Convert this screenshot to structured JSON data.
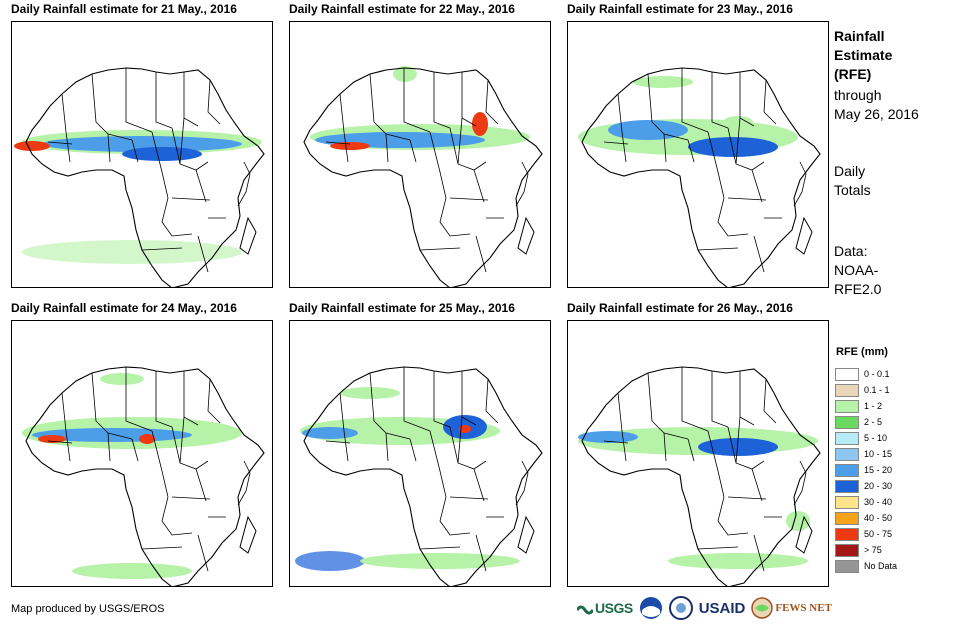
{
  "panels": [
    {
      "title": "Daily Rainfall estimate for 21 May., 2016"
    },
    {
      "title": "Daily Rainfall estimate for 22 May., 2016"
    },
    {
      "title": "Daily Rainfall estimate for 23 May., 2016"
    },
    {
      "title": "Daily Rainfall estimate for 24 May., 2016"
    },
    {
      "title": "Daily Rainfall estimate for 25 May., 2016"
    },
    {
      "title": "Daily Rainfall estimate for 26 May., 2016"
    }
  ],
  "sidebar": {
    "title_1": "Rainfall",
    "title_2": "Estimate",
    "title_3": "(RFE)",
    "through": "through",
    "date": "May 26, 2016",
    "daily_1": "Daily",
    "daily_2": "Totals",
    "data_1": "Data:",
    "data_2": "NOAA-",
    "data_3": "RFE2.0"
  },
  "legend": {
    "title": "RFE (mm)",
    "items": [
      {
        "label": "0 - 0.1",
        "color": "#ffffff"
      },
      {
        "label": "0.1 - 1",
        "color": "#e8d6b6"
      },
      {
        "label": "1 - 2",
        "color": "#b6f2a8"
      },
      {
        "label": "2 - 5",
        "color": "#6bd95f"
      },
      {
        "label": "5 - 10",
        "color": "#b6ecf5"
      },
      {
        "label": "10 - 15",
        "color": "#8ec6f2"
      },
      {
        "label": "15 - 20",
        "color": "#4c9ee8"
      },
      {
        "label": "20 - 30",
        "color": "#1e62d8"
      },
      {
        "label": "30 - 40",
        "color": "#ffe48a"
      },
      {
        "label": "40 - 50",
        "color": "#f5a31b"
      },
      {
        "label": "50 - 75",
        "color": "#ee3a12"
      },
      {
        "label": "> 75",
        "color": "#a31717"
      },
      {
        "label": "No Data",
        "color": "#969696"
      }
    ]
  },
  "credit": "Map produced by USGS/EROS",
  "logos": {
    "usgs": "USGS",
    "usaid": "USAID",
    "fews": "FEWS NET"
  }
}
